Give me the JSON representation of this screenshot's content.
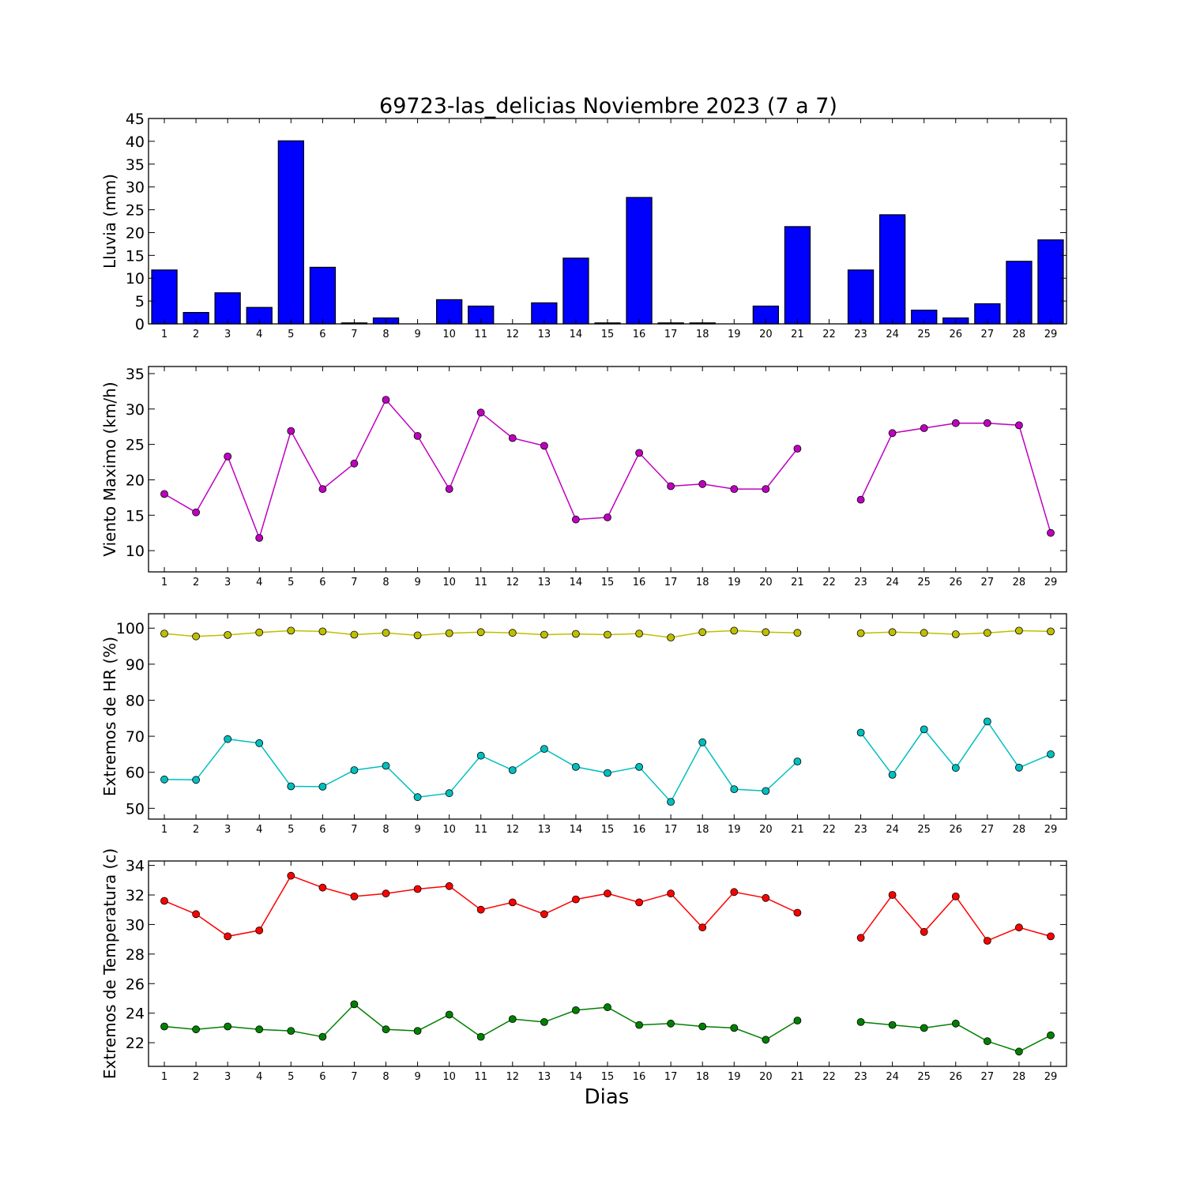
{
  "figure": {
    "title": "69723-las_delicias Noviembre 2023  (7 a 7)",
    "xlabel": "Dias"
  },
  "chart_data": [
    {
      "id": "lluvia",
      "type": "bar",
      "ylabel": "Lluvia (mm)",
      "ylim": [
        0,
        45
      ],
      "yticks": [
        0,
        5,
        10,
        15,
        20,
        25,
        30,
        35,
        40,
        45
      ],
      "xlim": [
        0.5,
        29.5
      ],
      "categories": [
        1,
        2,
        3,
        4,
        5,
        6,
        7,
        8,
        9,
        10,
        11,
        12,
        13,
        14,
        15,
        16,
        17,
        18,
        19,
        20,
        21,
        22,
        23,
        24,
        25,
        26,
        27,
        28,
        29
      ],
      "series": [
        {
          "color": "#0000ff",
          "values": [
            11.8,
            2.5,
            6.8,
            3.6,
            40.1,
            12.4,
            0.2,
            1.3,
            0.0,
            5.3,
            3.9,
            0.0,
            4.6,
            14.4,
            0.2,
            27.7,
            0.2,
            0.2,
            0.0,
            3.9,
            21.3,
            null,
            11.8,
            23.9,
            3.0,
            1.3,
            4.4,
            13.7,
            18.4
          ]
        }
      ],
      "grid": false
    },
    {
      "id": "viento",
      "type": "line",
      "ylabel": "Viento Maximo (km/h)",
      "ylim": [
        7,
        36
      ],
      "yticks": [
        10,
        15,
        20,
        25,
        30,
        35
      ],
      "xlim": [
        0.5,
        29.5
      ],
      "x": [
        1,
        2,
        3,
        4,
        5,
        6,
        7,
        8,
        9,
        10,
        11,
        12,
        13,
        14,
        15,
        16,
        17,
        18,
        19,
        20,
        21,
        22,
        23,
        24,
        25,
        26,
        27,
        28,
        29
      ],
      "series": [
        {
          "color": "#bf00bf",
          "values": [
            18.0,
            15.4,
            23.3,
            11.8,
            26.9,
            18.7,
            22.3,
            31.3,
            26.2,
            18.7,
            29.5,
            25.9,
            24.8,
            14.4,
            14.7,
            23.8,
            19.1,
            19.4,
            18.7,
            18.7,
            24.4,
            null,
            17.2,
            26.6,
            27.3,
            28.0,
            28.0,
            27.7,
            12.5
          ]
        }
      ],
      "grid": false
    },
    {
      "id": "humedad",
      "type": "line",
      "ylabel": "Extremos de HR (%)",
      "ylim": [
        47,
        104
      ],
      "yticks": [
        50,
        60,
        70,
        80,
        90,
        100
      ],
      "xlim": [
        0.5,
        29.5
      ],
      "x": [
        1,
        2,
        3,
        4,
        5,
        6,
        7,
        8,
        9,
        10,
        11,
        12,
        13,
        14,
        15,
        16,
        17,
        18,
        19,
        20,
        21,
        22,
        23,
        24,
        25,
        26,
        27,
        28,
        29
      ],
      "series": [
        {
          "color": "#bfbf00",
          "values": [
            98.5,
            97.7,
            98.1,
            98.8,
            99.3,
            99.1,
            98.2,
            98.7,
            98.0,
            98.6,
            98.9,
            98.7,
            98.2,
            98.4,
            98.2,
            98.5,
            97.4,
            98.9,
            99.3,
            98.9,
            98.7,
            null,
            98.6,
            98.9,
            98.7,
            98.3,
            98.7,
            99.3,
            99.1
          ]
        },
        {
          "color": "#00bfbf",
          "values": [
            58.0,
            57.9,
            69.2,
            68.1,
            56.1,
            56.0,
            60.6,
            61.8,
            53.1,
            54.2,
            64.6,
            60.6,
            66.5,
            61.5,
            59.8,
            61.5,
            51.8,
            68.3,
            55.3,
            54.8,
            63.0,
            null,
            71.0,
            59.3,
            71.9,
            61.2,
            74.1,
            61.3,
            65.0
          ]
        }
      ],
      "grid": false
    },
    {
      "id": "temperatura",
      "type": "line",
      "ylabel": "Extremos de Temperatura (c)",
      "ylim": [
        20.4,
        34.3
      ],
      "yticks": [
        22,
        24,
        26,
        28,
        30,
        32,
        34
      ],
      "xlim": [
        0.5,
        29.5
      ],
      "x": [
        1,
        2,
        3,
        4,
        5,
        6,
        7,
        8,
        9,
        10,
        11,
        12,
        13,
        14,
        15,
        16,
        17,
        18,
        19,
        20,
        21,
        22,
        23,
        24,
        25,
        26,
        27,
        28,
        29
      ],
      "series": [
        {
          "color": "#ff0000",
          "values": [
            31.6,
            30.7,
            29.2,
            29.6,
            33.3,
            32.5,
            31.9,
            32.1,
            32.4,
            32.6,
            31.0,
            31.5,
            30.7,
            31.7,
            32.1,
            31.5,
            32.1,
            29.8,
            32.2,
            31.8,
            30.8,
            null,
            29.1,
            32.0,
            29.5,
            31.9,
            28.9,
            29.8,
            29.2
          ]
        },
        {
          "color": "#008000",
          "values": [
            23.1,
            22.9,
            23.1,
            22.9,
            22.8,
            22.4,
            24.6,
            22.9,
            22.8,
            23.9,
            22.4,
            23.6,
            23.4,
            24.2,
            24.4,
            23.2,
            23.3,
            23.1,
            23.0,
            22.2,
            23.5,
            null,
            23.4,
            23.2,
            23.0,
            23.3,
            22.1,
            21.4,
            22.5
          ]
        }
      ],
      "grid": false
    }
  ]
}
